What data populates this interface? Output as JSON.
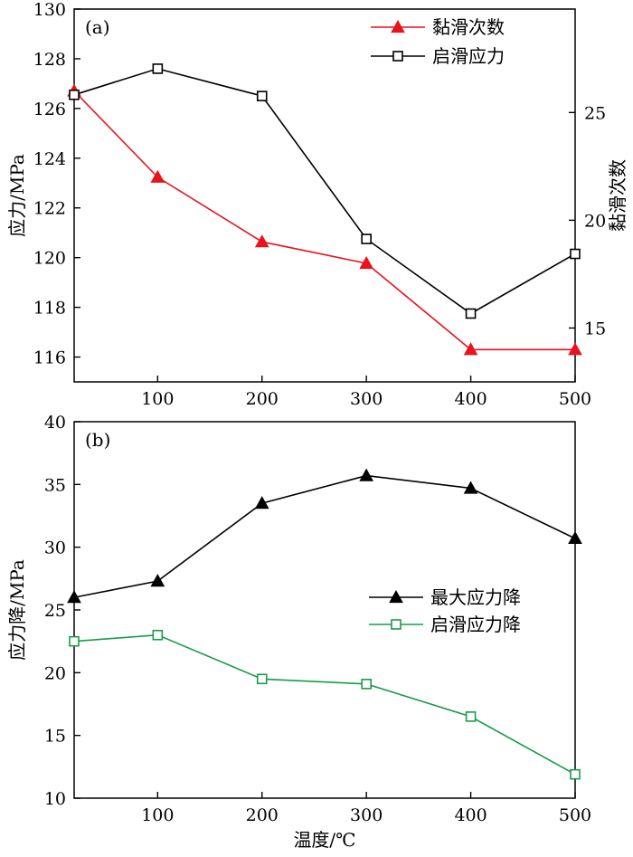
{
  "chart_data": [
    {
      "type": "line",
      "panel_label": "(a)",
      "x": [
        20,
        100,
        200,
        300,
        400,
        500
      ],
      "xlim": [
        20,
        500
      ],
      "x_ticks": [
        100,
        200,
        300,
        400,
        500
      ],
      "ylabel": "应力/MPa",
      "ylim": [
        115,
        130
      ],
      "y_ticks": [
        116,
        118,
        120,
        122,
        124,
        126,
        128,
        130
      ],
      "y2label": "黏滑次数",
      "y2lim": [
        12.5,
        29.8
      ],
      "y2_ticks": [
        15,
        20,
        25
      ],
      "legend_position": "top-right",
      "series": [
        {
          "name": "黏滑次数",
          "axis": "right",
          "marker": "filled-triangle",
          "color": "#e8131c",
          "values": [
            26,
            22,
            19,
            18,
            14,
            14
          ]
        },
        {
          "name": "启滑应力",
          "axis": "left",
          "marker": "open-square",
          "color": "#000000",
          "values": [
            126.55,
            127.6,
            126.5,
            120.75,
            117.75,
            120.15
          ]
        }
      ]
    },
    {
      "type": "line",
      "panel_label": "(b)",
      "x": [
        20,
        100,
        200,
        300,
        400,
        500
      ],
      "xlim": [
        20,
        500
      ],
      "x_ticks": [
        100,
        200,
        300,
        400,
        500
      ],
      "xlabel": "温度/℃",
      "ylabel": "应力降/MPa",
      "ylim": [
        10,
        40
      ],
      "y_ticks": [
        10,
        15,
        20,
        25,
        30,
        35,
        40
      ],
      "legend_position": "center-right",
      "series": [
        {
          "name": "最大应力降",
          "marker": "filled-triangle",
          "color": "#000000",
          "values": [
            26.0,
            27.3,
            33.5,
            35.7,
            34.7,
            30.7
          ]
        },
        {
          "name": "启滑应力降",
          "marker": "open-square",
          "color": "#1a9b4b",
          "values": [
            22.5,
            23.0,
            19.5,
            19.1,
            16.5,
            11.9
          ]
        }
      ]
    }
  ]
}
